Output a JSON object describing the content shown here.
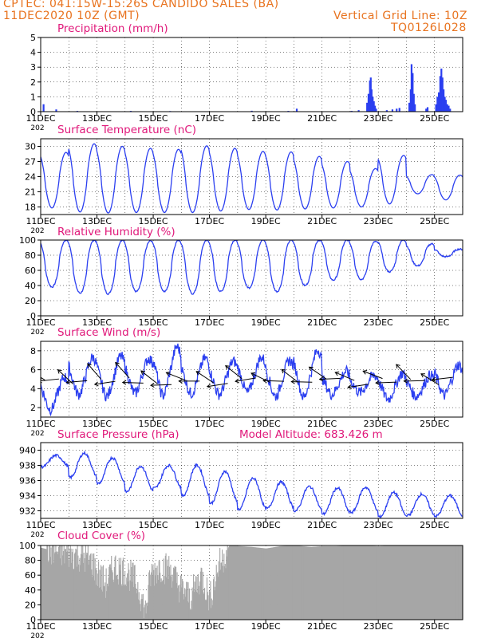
{
  "header": {
    "line1": "CPTEC:  041:15W-15:26S  CANDIDO SALES (BA)",
    "line2": "11DEC2020 10Z (GMT)",
    "right1": "Vertical Grid Line: 10Z",
    "right2": "TQ0126L028"
  },
  "x_labels": [
    "11DEC",
    "13DEC",
    "15DEC",
    "17DEC",
    "19DEC",
    "21DEC",
    "23DEC",
    "25DEC"
  ],
  "x_label_under": "202",
  "colors": {
    "series": "#2b3ff0",
    "cloud": "#a6a6a6",
    "title": "#e0187a",
    "header": "#e8731f",
    "wind_arrow": "#000000"
  },
  "chart_data": [
    {
      "type": "bar",
      "title": "Precipitation (mm/h)",
      "ylim": [
        0,
        5
      ],
      "yticks": [
        0,
        1,
        2,
        3,
        4,
        5
      ],
      "x_range_days": [
        0,
        15
      ],
      "bars": [
        [
          0.1,
          0.5
        ],
        [
          0.55,
          0.15
        ],
        [
          1.3,
          0.05
        ],
        [
          3.2,
          0.05
        ],
        [
          4.6,
          0.04
        ],
        [
          7.5,
          0.06
        ],
        [
          8.8,
          0.05
        ],
        [
          9.1,
          0.2
        ],
        [
          11.05,
          0.05
        ],
        [
          11.3,
          0.1
        ],
        [
          11.6,
          0.6
        ],
        [
          11.65,
          1.2
        ],
        [
          11.7,
          2.1
        ],
        [
          11.73,
          2.3
        ],
        [
          11.76,
          1.5
        ],
        [
          11.8,
          1.0
        ],
        [
          11.84,
          0.7
        ],
        [
          11.88,
          0.4
        ],
        [
          11.92,
          0.2
        ],
        [
          12.3,
          0.1
        ],
        [
          12.5,
          0.15
        ],
        [
          12.65,
          0.2
        ],
        [
          12.75,
          0.25
        ],
        [
          13.1,
          0.6
        ],
        [
          13.15,
          1.5
        ],
        [
          13.18,
          3.2
        ],
        [
          13.22,
          2.6
        ],
        [
          13.26,
          1.2
        ],
        [
          13.3,
          0.5
        ],
        [
          13.7,
          0.2
        ],
        [
          13.75,
          0.3
        ],
        [
          14.05,
          0.5
        ],
        [
          14.1,
          1.0
        ],
        [
          14.15,
          1.3
        ],
        [
          14.2,
          2.4
        ],
        [
          14.24,
          2.9
        ],
        [
          14.28,
          2.3
        ],
        [
          14.32,
          1.5
        ],
        [
          14.36,
          1.0
        ],
        [
          14.4,
          0.8
        ],
        [
          14.45,
          0.5
        ],
        [
          14.5,
          0.4
        ],
        [
          14.55,
          0.2
        ]
      ]
    },
    {
      "type": "line",
      "title": "Surface Temperature (nC)",
      "ylim": [
        16.5,
        31.5
      ],
      "yticks": [
        18,
        21,
        24,
        27,
        30
      ],
      "daily": [
        [
          17.8,
          28.8
        ],
        [
          17.0,
          30.5
        ],
        [
          16.8,
          30.0
        ],
        [
          16.9,
          29.6
        ],
        [
          16.9,
          29.4
        ],
        [
          16.9,
          30.1
        ],
        [
          17.2,
          29.6
        ],
        [
          17.5,
          29.0
        ],
        [
          17.4,
          28.9
        ],
        [
          17.6,
          28.0
        ],
        [
          17.8,
          27.0
        ],
        [
          18.0,
          25.6
        ],
        [
          18.6,
          28.2
        ],
        [
          20.6,
          24.4
        ],
        [
          19.4,
          24.3
        ]
      ]
    },
    {
      "type": "line",
      "title": "Relative Humidity (%)",
      "ylim": [
        0,
        100
      ],
      "yticks": [
        0,
        20,
        40,
        60,
        80,
        100
      ],
      "daily": [
        [
          100,
          38
        ],
        [
          100,
          30
        ],
        [
          100,
          29
        ],
        [
          99,
          32
        ],
        [
          100,
          32
        ],
        [
          100,
          29
        ],
        [
          100,
          32
        ],
        [
          100,
          37
        ],
        [
          100,
          32
        ],
        [
          100,
          40
        ],
        [
          100,
          47
        ],
        [
          98,
          48
        ],
        [
          100,
          58
        ],
        [
          95,
          66
        ],
        [
          88,
          78
        ]
      ]
    },
    {
      "type": "line",
      "title": "Surface Wind (m/s)",
      "ylim": [
        1,
        9
      ],
      "yticks": [
        2,
        4,
        6,
        8
      ],
      "daily": [
        [
          1.8,
          5.2
        ],
        [
          3.4,
          7.3
        ],
        [
          3.2,
          7.4
        ],
        [
          3.5,
          7.2
        ],
        [
          3.3,
          8.4
        ],
        [
          3.5,
          7.2
        ],
        [
          3.4,
          6.9
        ],
        [
          3.6,
          7.3
        ],
        [
          3.2,
          7.0
        ],
        [
          3.1,
          8.1
        ],
        [
          3.4,
          5.8
        ],
        [
          3.6,
          5.4
        ],
        [
          2.9,
          5.6
        ],
        [
          3.2,
          5.4
        ],
        [
          3.3,
          6.5
        ]
      ],
      "arrows": "wind barbs every ~6 h (direction shown only)"
    },
    {
      "type": "line",
      "title": "Surface Pressure (hPa)",
      "annotation": "Model Altitude: 683.426 m",
      "ylim": [
        931,
        941
      ],
      "yticks": [
        932,
        934,
        936,
        938,
        940
      ],
      "daily": [
        [
          937.8,
          939.3
        ],
        [
          936.4,
          939.6
        ],
        [
          935.6,
          939.0
        ],
        [
          934.5,
          937.9
        ],
        [
          935.0,
          938.0
        ],
        [
          934.0,
          938.0
        ],
        [
          933.0,
          937.2
        ],
        [
          932.2,
          936.3
        ],
        [
          932.3,
          935.8
        ],
        [
          932.0,
          935.2
        ],
        [
          931.6,
          935.0
        ],
        [
          931.8,
          935.1
        ],
        [
          931.2,
          934.4
        ],
        [
          931.4,
          934.2
        ],
        [
          931.3,
          934.0
        ]
      ]
    },
    {
      "type": "area",
      "title": "Cloud Cover (%)",
      "ylim": [
        0,
        100
      ],
      "yticks": [
        0,
        20,
        40,
        60,
        80,
        100
      ],
      "levels": [
        [
          0,
          97
        ],
        [
          0.5,
          92
        ],
        [
          1.0,
          90
        ],
        [
          1.5,
          85
        ],
        [
          1.8,
          78
        ],
        [
          2.0,
          62
        ],
        [
          2.3,
          48
        ],
        [
          2.6,
          72
        ],
        [
          3.0,
          65
        ],
        [
          3.3,
          55
        ],
        [
          3.5,
          40
        ],
        [
          3.7,
          10
        ],
        [
          3.9,
          60
        ],
        [
          4.2,
          72
        ],
        [
          4.6,
          68
        ],
        [
          4.9,
          45
        ],
        [
          5.3,
          30
        ],
        [
          5.7,
          60
        ],
        [
          6.0,
          28
        ],
        [
          6.3,
          72
        ],
        [
          6.7,
          100
        ],
        [
          7.5,
          98
        ],
        [
          8.0,
          96
        ],
        [
          8.5,
          99
        ],
        [
          9.0,
          100
        ],
        [
          9.6,
          98
        ],
        [
          10.0,
          99
        ],
        [
          10.5,
          99
        ],
        [
          11.0,
          100
        ],
        [
          11.5,
          100
        ],
        [
          12.0,
          99
        ],
        [
          12.5,
          100
        ],
        [
          13.0,
          100
        ],
        [
          13.5,
          100
        ],
        [
          14.0,
          100
        ],
        [
          14.5,
          100
        ],
        [
          15.0,
          100
        ]
      ]
    }
  ]
}
